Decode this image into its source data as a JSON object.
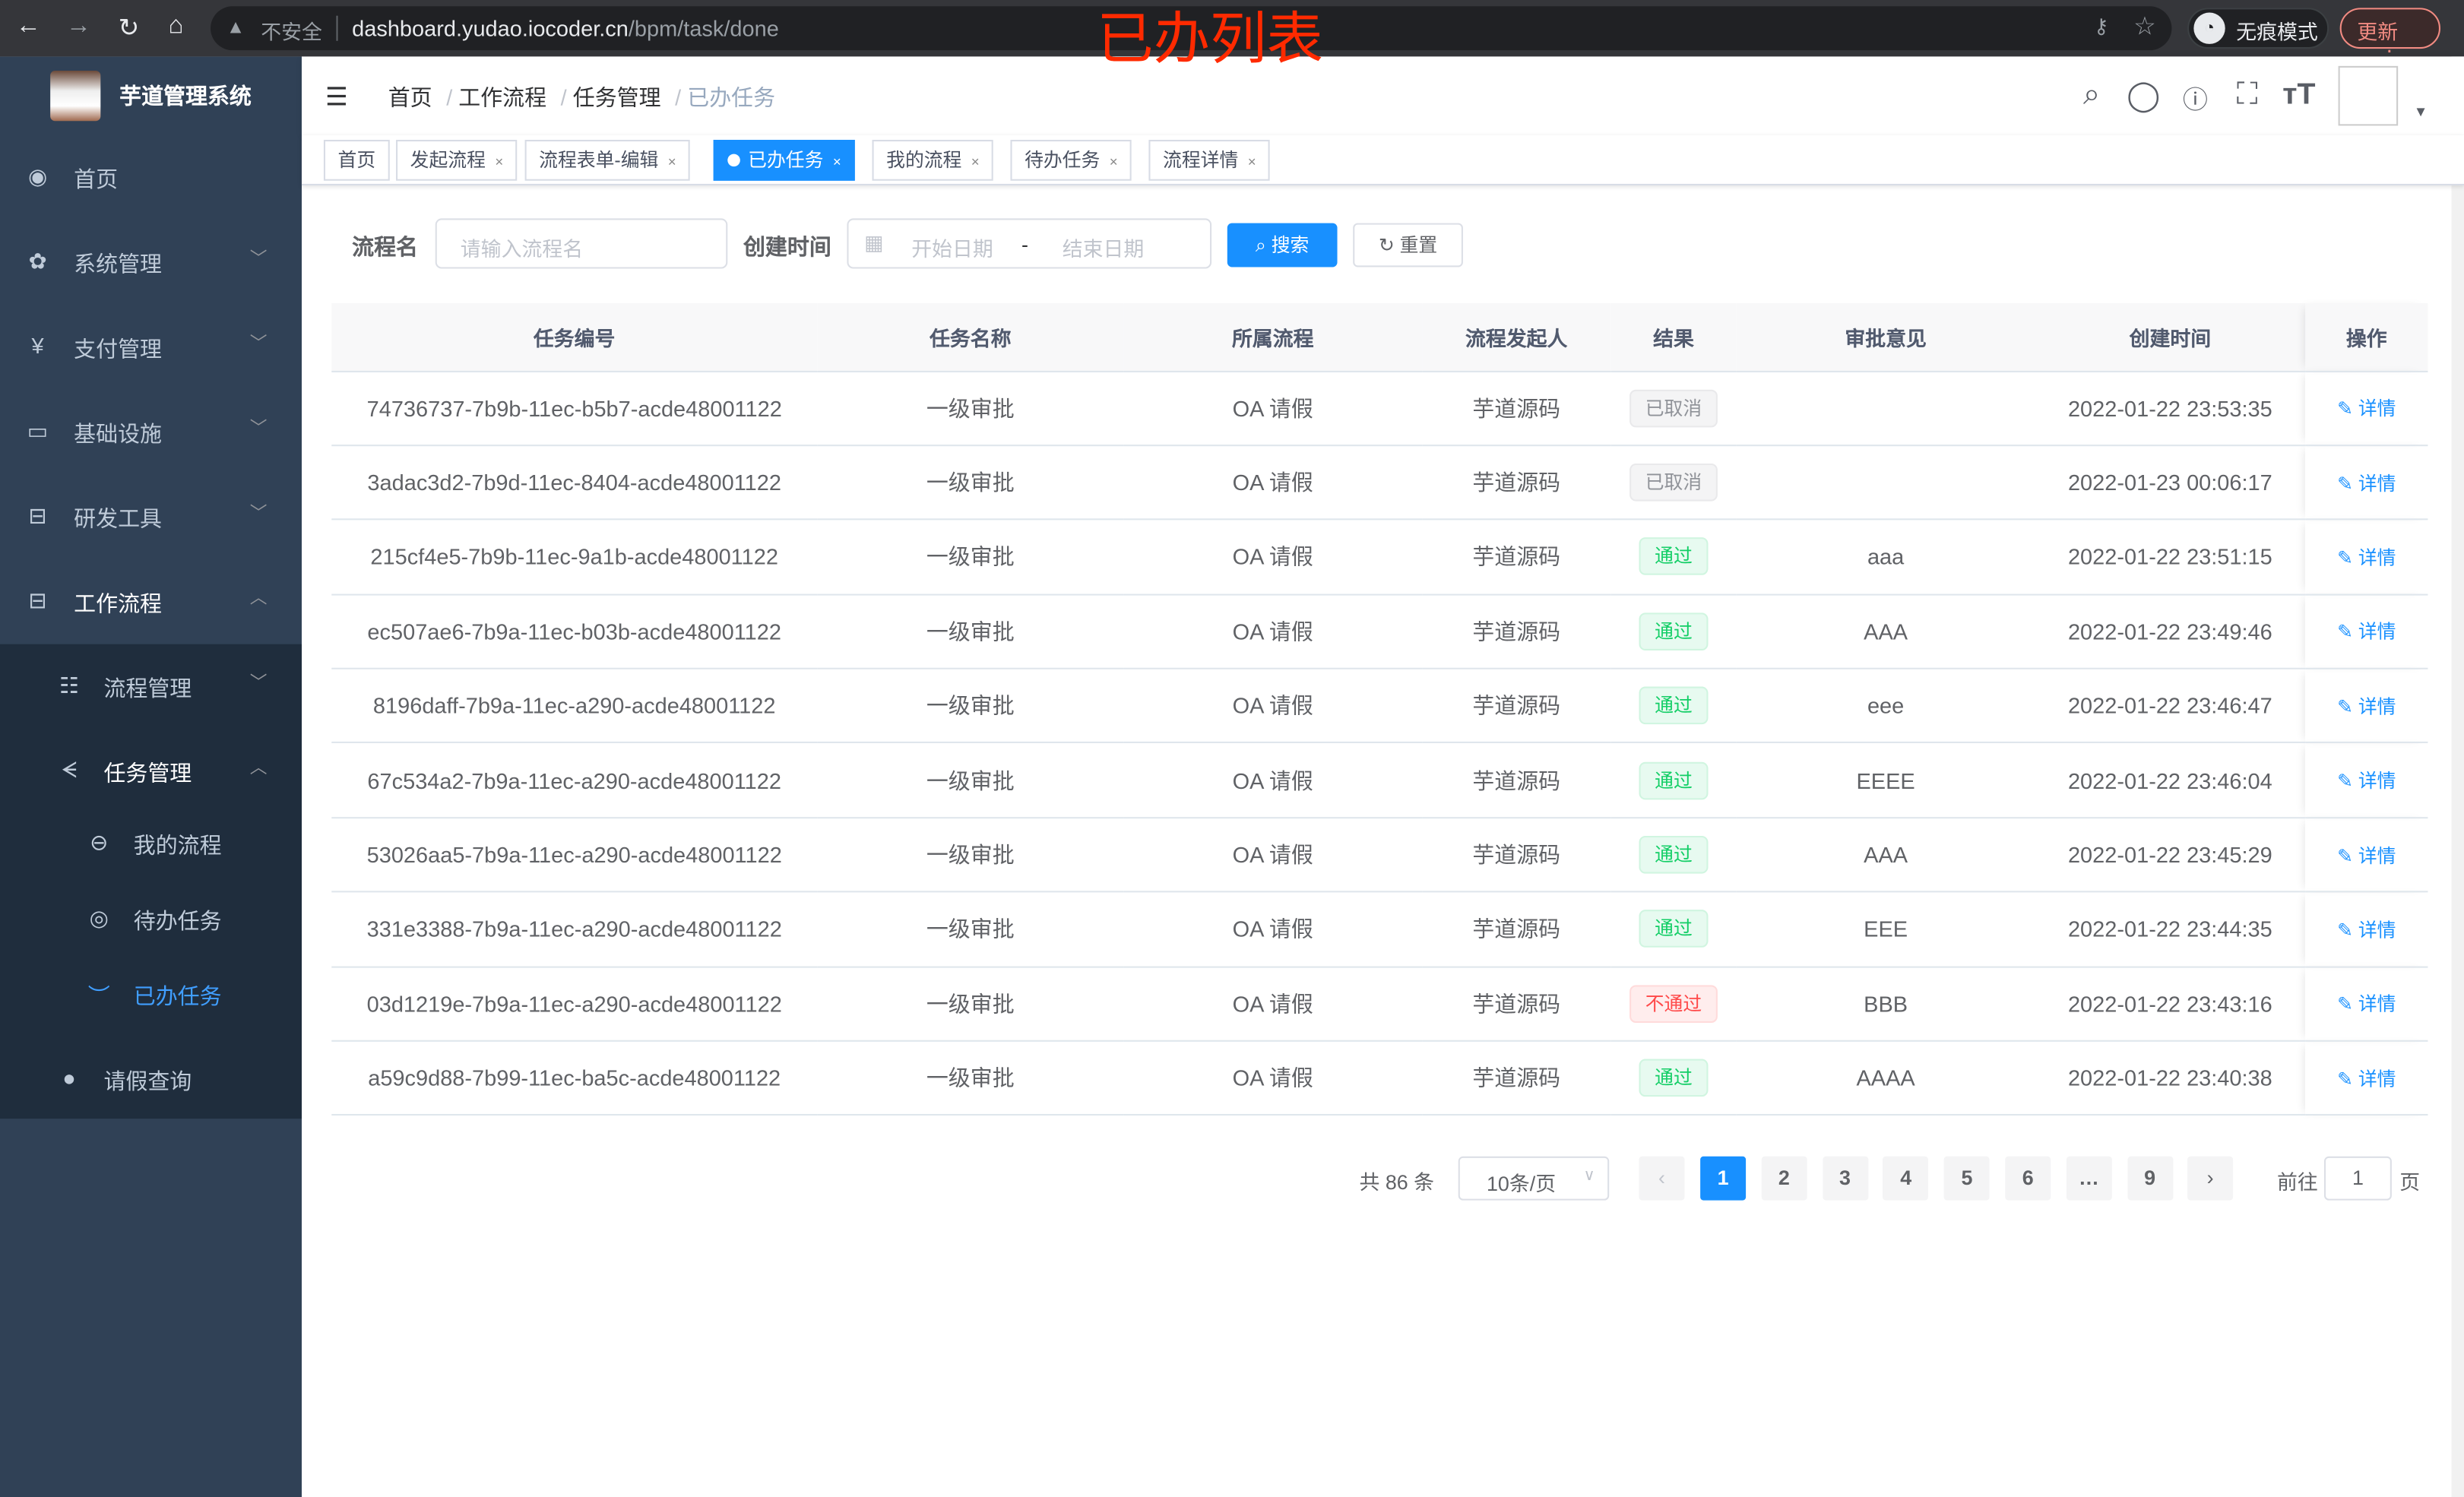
{
  "browser": {
    "insecure": "不安全",
    "url_host": "dashboard.yudao.iocoder.cn",
    "url_path": "/bpm/task/done",
    "incognito": "无痕模式",
    "update": "更新"
  },
  "annotation": "已办列表",
  "sidebar": {
    "title": "芋道管理系统",
    "items": [
      {
        "label": "首页",
        "icon": "dashboard-icon"
      },
      {
        "label": "系统管理",
        "icon": "gear-icon"
      },
      {
        "label": "支付管理",
        "icon": "yen-icon"
      },
      {
        "label": "基础设施",
        "icon": "monitor-icon"
      },
      {
        "label": "研发工具",
        "icon": "toolbox-icon"
      },
      {
        "label": "工作流程",
        "icon": "toolbox-icon"
      }
    ],
    "sub": [
      {
        "label": "流程管理",
        "icon": "list-icon"
      },
      {
        "label": "任务管理",
        "icon": "task-icon"
      },
      {
        "label": "我的流程",
        "icon": "people-icon"
      },
      {
        "label": "待办任务",
        "icon": "eye-icon"
      },
      {
        "label": "已办任务",
        "icon": "eye-closed-icon"
      },
      {
        "label": "请假查询",
        "icon": "user-icon"
      }
    ]
  },
  "breadcrumb": [
    "首页",
    "工作流程",
    "任务管理",
    "已办任务"
  ],
  "tags": [
    "首页",
    "发起流程",
    "流程表单-编辑",
    "已办任务",
    "我的流程",
    "待办任务",
    "流程详情"
  ],
  "form": {
    "name_label": "流程名",
    "name_placeholder": "请输入流程名",
    "time_label": "创建时间",
    "start_placeholder": "开始日期",
    "range_sep": "-",
    "end_placeholder": "结束日期",
    "search": "搜索",
    "reset": "重置"
  },
  "table": {
    "columns": [
      "任务编号",
      "任务名称",
      "所属流程",
      "流程发起人",
      "结果",
      "审批意见",
      "创建时间",
      "操作"
    ],
    "action": "详情",
    "result_colors": {
      "已取消": {
        "fg": "#909399",
        "bg": "#f4f4f5",
        "bd": "#e9e9eb"
      },
      "通过": {
        "fg": "#13ce66",
        "bg": "#e7faf0",
        "bd": "#d0f5e0"
      },
      "不通过": {
        "fg": "#ff4949",
        "bg": "#ffeded",
        "bd": "#ffdbdb"
      }
    },
    "rows": [
      [
        "74736737-7b9b-11ec-b5b7-acde48001122",
        "一级审批",
        "OA 请假",
        "芋道源码",
        "已取消",
        "",
        "2022-01-22 23:53:35"
      ],
      [
        "3adac3d2-7b9d-11ec-8404-acde48001122",
        "一级审批",
        "OA 请假",
        "芋道源码",
        "已取消",
        "",
        "2022-01-23 00:06:17"
      ],
      [
        "215cf4e5-7b9b-11ec-9a1b-acde48001122",
        "一级审批",
        "OA 请假",
        "芋道源码",
        "通过",
        "aaa",
        "2022-01-22 23:51:15"
      ],
      [
        "ec507ae6-7b9a-11ec-b03b-acde48001122",
        "一级审批",
        "OA 请假",
        "芋道源码",
        "通过",
        "AAA",
        "2022-01-22 23:49:46"
      ],
      [
        "8196daff-7b9a-11ec-a290-acde48001122",
        "一级审批",
        "OA 请假",
        "芋道源码",
        "通过",
        "eee",
        "2022-01-22 23:46:47"
      ],
      [
        "67c534a2-7b9a-11ec-a290-acde48001122",
        "一级审批",
        "OA 请假",
        "芋道源码",
        "通过",
        "EEEE",
        "2022-01-22 23:46:04"
      ],
      [
        "53026aa5-7b9a-11ec-a290-acde48001122",
        "一级审批",
        "OA 请假",
        "芋道源码",
        "通过",
        "AAA",
        "2022-01-22 23:45:29"
      ],
      [
        "331e3388-7b9a-11ec-a290-acde48001122",
        "一级审批",
        "OA 请假",
        "芋道源码",
        "通过",
        "EEE",
        "2022-01-22 23:44:35"
      ],
      [
        "03d1219e-7b9a-11ec-a290-acde48001122",
        "一级审批",
        "OA 请假",
        "芋道源码",
        "不通过",
        "BBB",
        "2022-01-22 23:43:16"
      ],
      [
        "a59c9d88-7b99-11ec-ba5c-acde48001122",
        "一级审批",
        "OA 请假",
        "芋道源码",
        "通过",
        "AAAA",
        "2022-01-22 23:40:38"
      ]
    ]
  },
  "pagination": {
    "total": "共 86 条",
    "page_size": "10条/页",
    "pages": [
      "1",
      "2",
      "3",
      "4",
      "5",
      "6",
      "…",
      "9"
    ],
    "current": "1",
    "goto_label": "前往",
    "goto_value": "1",
    "goto_suffix": "页"
  }
}
